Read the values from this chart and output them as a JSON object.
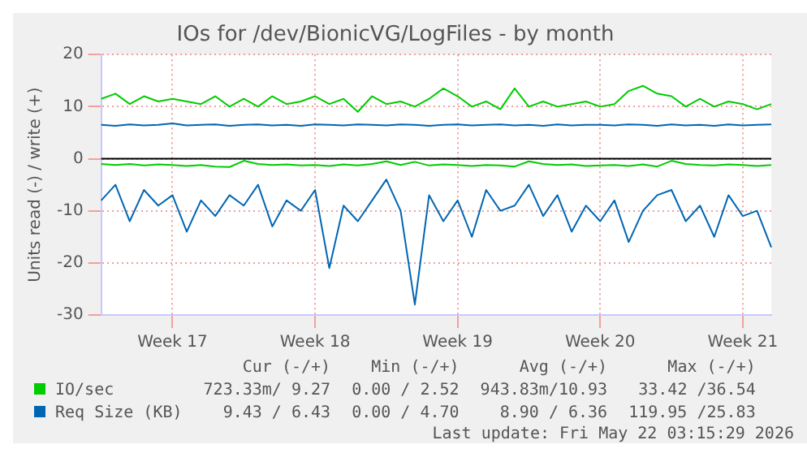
{
  "chart_data": {
    "type": "line",
    "title": "IOs for /dev/BionicVG/LogFiles - by month",
    "ylabel": "Units read (-) / write (+)",
    "categories": [
      null,
      null,
      null,
      null,
      null,
      "Week 17",
      null,
      null,
      null,
      null,
      null,
      null,
      null,
      null,
      null,
      "Week 18",
      null,
      null,
      null,
      null,
      null,
      null,
      null,
      null,
      null,
      "Week 19",
      null,
      null,
      null,
      null,
      null,
      null,
      null,
      null,
      null,
      "Week 20",
      null,
      null,
      null,
      null,
      null,
      null,
      null,
      null,
      null,
      "Week 21",
      null,
      null
    ],
    "ylim": [
      -30,
      20
    ],
    "yticks": [
      -30,
      -20,
      -10,
      0,
      10,
      20
    ],
    "grid": true,
    "legend": "bottom",
    "marker": "none",
    "line_style": "solid",
    "ref_lines": [
      {
        "axis": "y",
        "value": 0,
        "color": "#000000"
      }
    ],
    "series": [
      {
        "name": "IO/sec",
        "color": "#00cc00",
        "values": [
          11.5,
          12.5,
          10.5,
          12,
          11,
          11.5,
          11,
          10.5,
          12,
          10,
          11.5,
          10,
          12,
          10.5,
          11,
          12,
          10.5,
          11.5,
          9,
          12,
          10.5,
          11,
          10,
          11.5,
          13.5,
          12,
          10,
          11,
          9.5,
          13.5,
          10,
          11,
          10,
          10.5,
          11,
          10,
          10.5,
          13,
          14,
          12.5,
          12,
          10,
          11.5,
          10,
          11,
          10.5,
          9.5,
          10.5
        ]
      },
      {
        "color": "#00cc00",
        "values": [
          -1,
          -1.2,
          -1,
          -1.3,
          -1.1,
          -1.2,
          -1.4,
          -1.2,
          -1.5,
          -1.6,
          -0.4,
          -1,
          -1.2,
          -1.1,
          -1.3,
          -1.2,
          -1.4,
          -1.1,
          -1.3,
          -1,
          -0.5,
          -1.2,
          -0.6,
          -1.3,
          -1.1,
          -1.2,
          -1.4,
          -1.2,
          -1.3,
          -1.5,
          -0.5,
          -1,
          -1.2,
          -1.1,
          -1.4,
          -1.3,
          -1.2,
          -1.4,
          -1.1,
          -1.5,
          -0.4,
          -1,
          -1.2,
          -1.3,
          -1.1,
          -1.2,
          -1.4,
          -1.2
        ]
      },
      {
        "name": "Req Size (KB)",
        "color": "#0066b3",
        "values": [
          6.5,
          6.3,
          6.6,
          6.4,
          6.5,
          6.8,
          6.4,
          6.5,
          6.6,
          6.3,
          6.5,
          6.6,
          6.4,
          6.5,
          6.3,
          6.6,
          6.5,
          6.4,
          6.6,
          6.5,
          6.4,
          6.6,
          6.5,
          6.3,
          6.5,
          6.6,
          6.4,
          6.5,
          6.6,
          6.4,
          6.5,
          6.3,
          6.6,
          6.4,
          6.5,
          6.5,
          6.4,
          6.6,
          6.5,
          6.3,
          6.6,
          6.4,
          6.5,
          6.3,
          6.6,
          6.4,
          6.5,
          6.6
        ]
      },
      {
        "color": "#0066b3",
        "values": [
          -8,
          -5,
          -12,
          -6,
          -9,
          -7,
          -14,
          -8,
          -11,
          -7,
          -9,
          -5,
          -13,
          -8,
          -10,
          -6,
          -21,
          -9,
          -12,
          -8,
          -4,
          -10,
          -28,
          -7,
          -12,
          -8,
          -15,
          -6,
          -10,
          -9,
          -5,
          -11,
          -7,
          -14,
          -9,
          -12,
          -8,
          -16,
          -10,
          -7,
          -6,
          -12,
          -9,
          -15,
          -7,
          -11,
          -10,
          -17
        ]
      }
    ],
    "annotations": [
      "Cur (-/+)",
      "Min (-/+)",
      "Avg (-/+)",
      "Max (-/+)",
      "723.33m/ 9.27",
      "0.00 / 2.52",
      "943.83m/10.93",
      "33.42 /36.54",
      "9.43 / 6.43",
      "0.00 / 4.70",
      "8.90 / 6.36",
      "119.95 /25.83",
      "Last update: Fri May 22 03:15:29 2026"
    ]
  }
}
